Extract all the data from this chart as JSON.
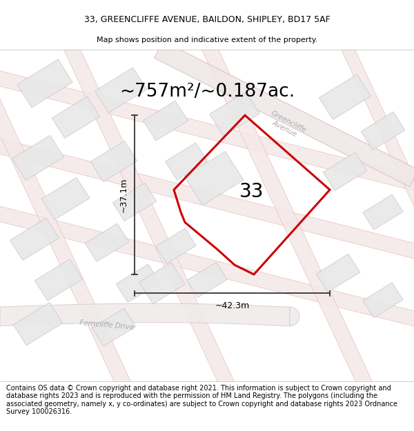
{
  "title_line1": "33, GREENCLIFFE AVENUE, BAILDON, SHIPLEY, BD17 5AF",
  "title_line2": "Map shows position and indicative extent of the property.",
  "area_text": "~757m²/~0.187ac.",
  "number_label": "33",
  "dim_width": "~42.3m",
  "dim_height": "~37.1m",
  "road_label_greencliffe": "Greencliffe\nAvenue",
  "road_label_ferncliffe": "Ferncliffe Drive",
  "footer_text": "Contains OS data © Crown copyright and database right 2021. This information is subject to Crown copyright and database rights 2023 and is reproduced with the permission of HM Land Registry. The polygons (including the associated geometry, namely x, y co-ordinates) are subject to Crown copyright and database rights 2023 Ordnance Survey 100026316.",
  "bg_color": "#ffffff",
  "road_fill": "#f5e8e8",
  "road_edge": "#e8c0c0",
  "building_fill": "#e8e8e8",
  "building_edge": "#c8c8c8",
  "plot_color": "#cc0000",
  "title_fontsize": 9.0,
  "subtitle_fontsize": 8.0,
  "area_fontsize": 19,
  "number_fontsize": 20,
  "footer_fontsize": 7.0,
  "road_label_color": "#aaaaaa",
  "road_label_fontsize": 7.5,
  "dim_fontsize": 9,
  "annotation_color": "#333333"
}
